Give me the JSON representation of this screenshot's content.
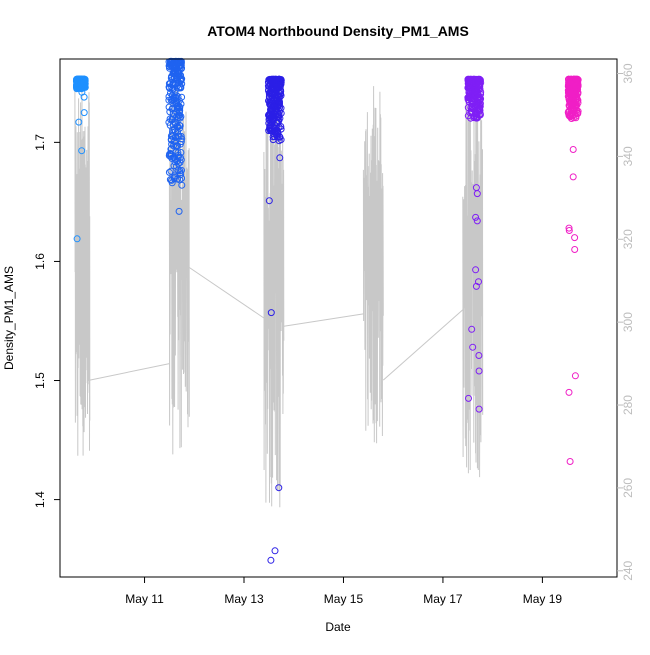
{
  "chart_data": {
    "type": "scatter",
    "title": "ATOM4 Northbound Density_PM1_AMS",
    "xlabel": "Date",
    "ylabel": "Density_PM1_AMS",
    "x_ticks": [
      "May 11",
      "May 13",
      "May 15",
      "May 17",
      "May 19"
    ],
    "x_tick_days": [
      11,
      13,
      15,
      17,
      19
    ],
    "xlim_days": [
      9.3,
      20.5
    ],
    "ylim": [
      1.335,
      1.77
    ],
    "y_ticks": [
      1.4,
      1.5,
      1.6,
      1.7
    ],
    "right_axis": {
      "ylim": [
        238.5,
        363.5
      ],
      "ticks": [
        240,
        260,
        280,
        300,
        320,
        340,
        360
      ],
      "color": "#bdbdbd"
    },
    "grid": false,
    "legend": "none",
    "line_series": {
      "color": "#c8c8c8",
      "dense_segments": [
        {
          "x0": 9.6,
          "x1": 9.9,
          "ymin": 265,
          "ymax": 358
        },
        {
          "x0": 11.5,
          "x1": 11.9,
          "ymin": 268,
          "ymax": 357
        },
        {
          "x0": 13.4,
          "x1": 13.8,
          "ymin": 255,
          "ymax": 357
        },
        {
          "x0": 15.4,
          "x1": 15.8,
          "ymin": 270,
          "ymax": 357
        },
        {
          "x0": 17.4,
          "x1": 17.8,
          "ymin": 262,
          "ymax": 357
        }
      ],
      "connectors": [
        [
          [
            9.9,
            286
          ],
          [
            11.5,
            290
          ]
        ],
        [
          [
            11.8,
            314
          ],
          [
            13.4,
            301
          ]
        ],
        [
          [
            13.8,
            299
          ],
          [
            15.4,
            302
          ]
        ],
        [
          [
            15.8,
            286
          ],
          [
            17.4,
            303
          ]
        ]
      ]
    },
    "series": [
      {
        "name": "",
        "color": "#1e90ff",
        "x_center": 9.72,
        "x_spread": 0.18,
        "dense_min": 1.745,
        "dense_max": 1.753,
        "outliers": [
          1.725,
          1.717,
          1.693,
          1.619,
          1.738,
          1.742
        ]
      },
      {
        "name": "",
        "color": "#1f63f0",
        "x_center": 11.62,
        "x_spread": 0.26,
        "dense_min": 1.664,
        "dense_max": 1.768,
        "outliers": [
          1.642,
          1.686,
          1.69
        ]
      },
      {
        "name": "",
        "color": "#2b1fe6",
        "x_center": 13.62,
        "x_spread": 0.26,
        "dense_min": 1.7,
        "dense_max": 1.753,
        "outliers": [
          1.651,
          1.687,
          1.557,
          1.41,
          1.357,
          1.349
        ]
      },
      {
        "name": "",
        "color": "#7f1ff5",
        "x_center": 17.63,
        "x_spread": 0.26,
        "dense_min": 1.72,
        "dense_max": 1.753,
        "outliers": [
          1.662,
          1.657,
          1.637,
          1.634,
          1.593,
          1.583,
          1.579,
          1.543,
          1.528,
          1.521,
          1.508,
          1.485,
          1.476
        ]
      },
      {
        "name": "",
        "color": "#f01fc6",
        "x_center": 19.62,
        "x_spread": 0.2,
        "dense_min": 1.72,
        "dense_max": 1.753,
        "outliers": [
          1.694,
          1.671,
          1.628,
          1.626,
          1.62,
          1.61,
          1.504,
          1.49,
          1.432
        ]
      }
    ]
  }
}
